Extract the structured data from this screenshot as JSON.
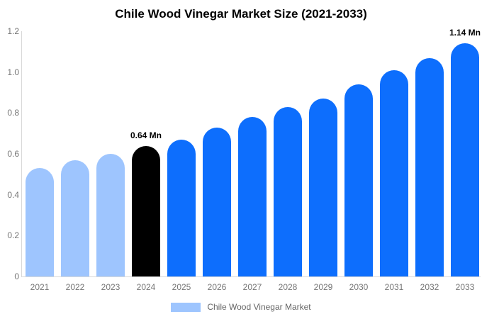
{
  "chart_data": {
    "type": "bar",
    "title": "Chile Wood Vinegar Market Size (2021-2033)",
    "categories": [
      "2021",
      "2022",
      "2023",
      "2024",
      "2025",
      "2026",
      "2027",
      "2028",
      "2029",
      "2030",
      "2031",
      "2032",
      "2033"
    ],
    "values": [
      0.53,
      0.57,
      0.6,
      0.64,
      0.67,
      0.73,
      0.78,
      0.83,
      0.87,
      0.94,
      1.01,
      1.07,
      1.14
    ],
    "bar_colors": [
      "#9EC5FE",
      "#9EC5FE",
      "#9EC5FE",
      "#000000",
      "#0D6EFD",
      "#0D6EFD",
      "#0D6EFD",
      "#0D6EFD",
      "#0D6EFD",
      "#0D6EFD",
      "#0D6EFD",
      "#0D6EFD",
      "#0D6EFD"
    ],
    "annotations": [
      {
        "category": "2024",
        "text": "0.64 Mn"
      },
      {
        "category": "2033",
        "text": "1.14 Mn"
      }
    ],
    "xlabel": "",
    "ylabel": "",
    "ylim": [
      0,
      1.2
    ],
    "yticks": [
      0,
      0.2,
      0.4,
      0.6,
      0.8,
      1.0,
      1.2
    ],
    "ytick_labels": [
      "0",
      "0.2",
      "0.4",
      "0.6",
      "0.8",
      "1.0",
      "1.2"
    ],
    "grid": false,
    "legend_position": "bottom"
  },
  "legend": {
    "label": "Chile Wood Vinegar Market",
    "swatch_color": "#9EC5FE"
  },
  "style": {
    "axis_line_color": "#d9d9d9",
    "tick_text_color": "#767676",
    "legend_text_color": "#666666",
    "title_color": "#000000",
    "annotation_color": "#000000",
    "background": "#ffffff"
  }
}
